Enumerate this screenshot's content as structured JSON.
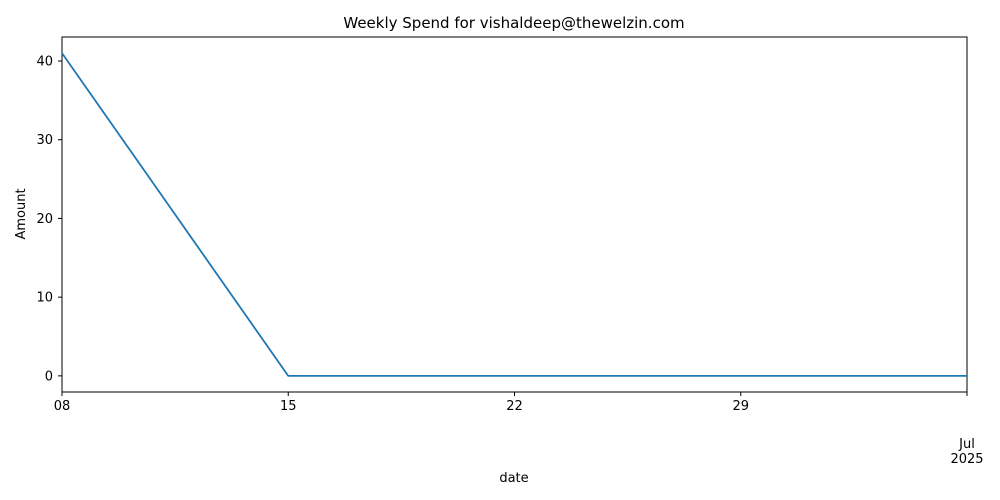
{
  "chart_data": {
    "type": "line",
    "title": "Weekly Spend for vishaldeep@thewelzin.com",
    "xlabel": "date",
    "ylabel": "Amount",
    "x_tick_labels": [
      "08",
      "15",
      "22",
      "29",
      "Jul\n2025"
    ],
    "y_ticks": [
      0,
      10,
      20,
      30,
      40
    ],
    "ylim": [
      -2.05,
      43.05
    ],
    "xlim": [
      "2025-06-08",
      "2025-07-06"
    ],
    "grid": false,
    "legend": "none",
    "series": [
      {
        "color": "#1f77b4",
        "x": [
          "2025-06-08",
          "2025-06-15",
          "2025-06-22",
          "2025-06-29",
          "2025-07-06"
        ],
        "y": [
          41,
          0,
          0,
          0,
          0
        ]
      }
    ]
  }
}
